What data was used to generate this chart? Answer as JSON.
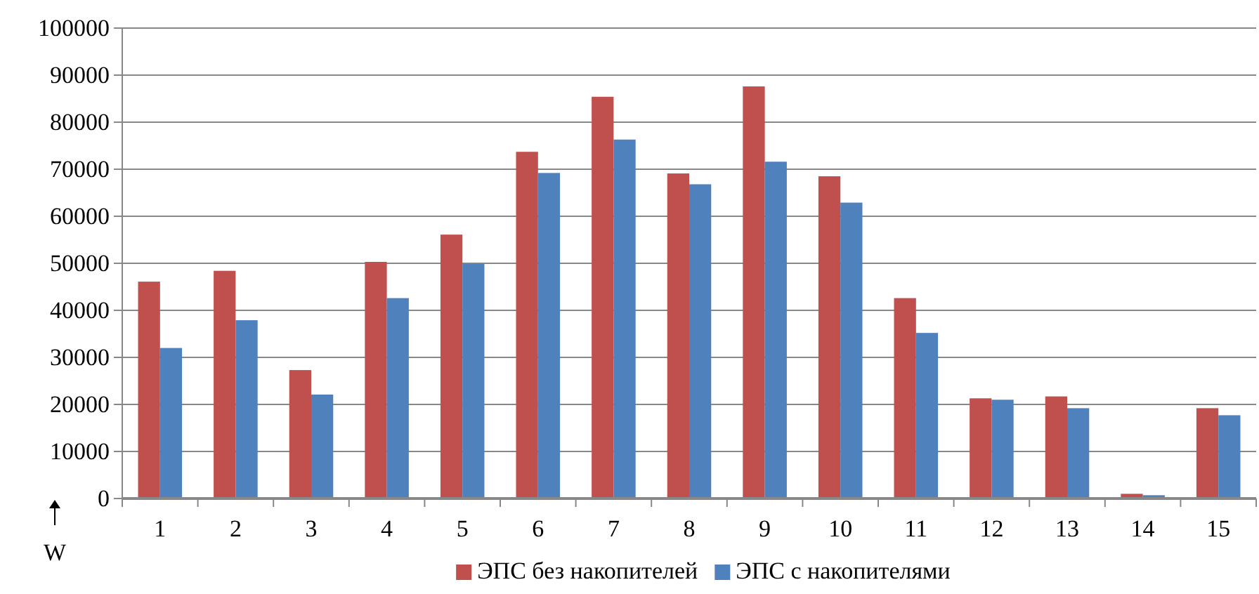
{
  "chart_data": {
    "type": "bar",
    "categories": [
      "1",
      "2",
      "3",
      "4",
      "5",
      "6",
      "7",
      "8",
      "9",
      "10",
      "11",
      "12",
      "13",
      "14",
      "15"
    ],
    "series": [
      {
        "name": "ЭПС без накопителей",
        "color": "#c0504d",
        "values": [
          46100,
          48400,
          27300,
          50300,
          56100,
          73700,
          85400,
          69100,
          87600,
          68500,
          42600,
          21300,
          21700,
          1000,
          19200
        ]
      },
      {
        "name": "ЭПС с накопителями",
        "color": "#4f81bd",
        "values": [
          32000,
          37900,
          22100,
          42600,
          49900,
          69200,
          76300,
          66800,
          71600,
          62900,
          35200,
          21000,
          19200,
          700,
          17700
        ]
      }
    ],
    "ylabel": "W",
    "ylim": [
      0,
      100000
    ],
    "yticks": [
      0,
      10000,
      20000,
      30000,
      40000,
      50000,
      60000,
      70000,
      80000,
      90000,
      100000
    ],
    "grid": "y",
    "legend": "bottom"
  }
}
